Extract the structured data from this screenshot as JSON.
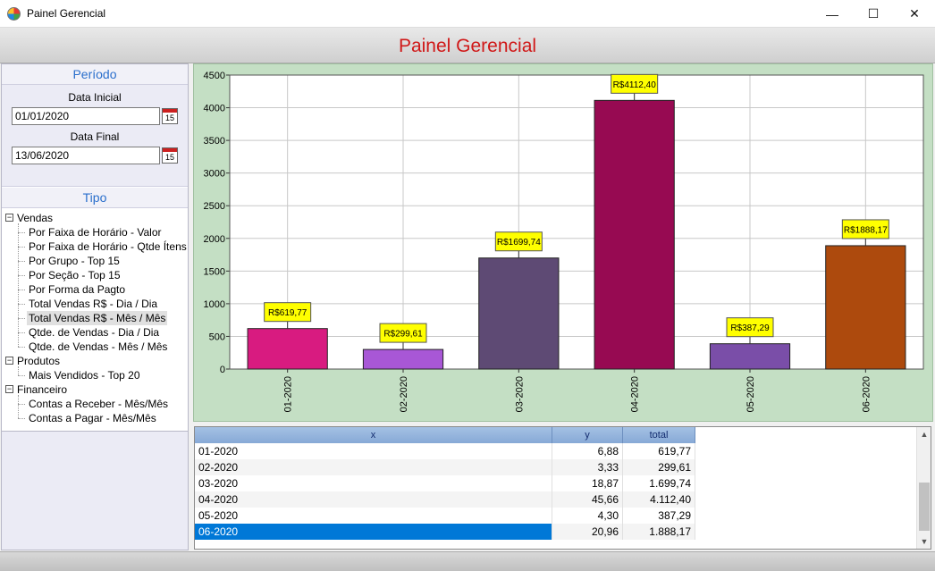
{
  "window": {
    "title": "Painel Gerencial",
    "minimize": "—",
    "maximize": "☐",
    "close": "✕"
  },
  "header": {
    "title": "Painel Gerencial"
  },
  "periodo": {
    "section_title": "Período",
    "data_inicial_label": "Data Inicial",
    "data_inicial_value": "01/01/2020",
    "data_final_label": "Data Final",
    "data_final_value": "13/06/2020",
    "calendar_day": "15"
  },
  "tipo": {
    "section_title": "Tipo",
    "tree": [
      {
        "label": "Vendas",
        "children": [
          "Por Faixa de Horário - Valor",
          "Por Faixa de Horário - Qtde Ítens",
          "Por Grupo - Top 15",
          "Por Seção - Top 15",
          "Por Forma da Pagto",
          "Total Vendas R$ - Dia / Dia",
          "Total Vendas R$ - Mês / Mês",
          "Qtde. de Vendas - Dia / Dia",
          "Qtde. de Vendas - Mês / Mês"
        ]
      },
      {
        "label": "Produtos",
        "children": [
          "Mais Vendidos - Top 20"
        ]
      },
      {
        "label": "Financeiro",
        "children": [
          "Contas a Receber - Mês/Mês",
          "Contas a Pagar - Mês/Mês"
        ]
      }
    ],
    "selected": "Total Vendas R$ - Mês / Mês"
  },
  "chart_data": {
    "type": "bar",
    "categories": [
      "01-2020",
      "02-2020",
      "03-2020",
      "04-2020",
      "05-2020",
      "06-2020"
    ],
    "values": [
      619.77,
      299.61,
      1699.74,
      4112.4,
      387.29,
      1888.17
    ],
    "data_labels": [
      "R$619,77",
      "R$299,61",
      "R$1699,74",
      "R$4112,40",
      "R$387,29",
      "R$1888,17"
    ],
    "colors": [
      "#d81b80",
      "#a857d6",
      "#5e4a74",
      "#970a52",
      "#7a4ea8",
      "#ad4a0d"
    ],
    "ylim": [
      0,
      4500
    ],
    "yticks": [
      "0",
      "500",
      "1000",
      "1500",
      "2000",
      "2500",
      "3000",
      "3500",
      "4000",
      "4500"
    ],
    "grid": true,
    "label_bg": "#ffff00"
  },
  "grid": {
    "headers": [
      "x",
      "y",
      "total"
    ],
    "rows": [
      [
        "01-2020",
        "6,88",
        "619,77"
      ],
      [
        "02-2020",
        "3,33",
        "299,61"
      ],
      [
        "03-2020",
        "18,87",
        "1.699,74"
      ],
      [
        "04-2020",
        "45,66",
        "4.112,40"
      ],
      [
        "05-2020",
        "4,30",
        "387,29"
      ],
      [
        "06-2020",
        "20,96",
        "1.888,17"
      ]
    ],
    "selected_row": 5,
    "selected_color": "#0078d7"
  }
}
